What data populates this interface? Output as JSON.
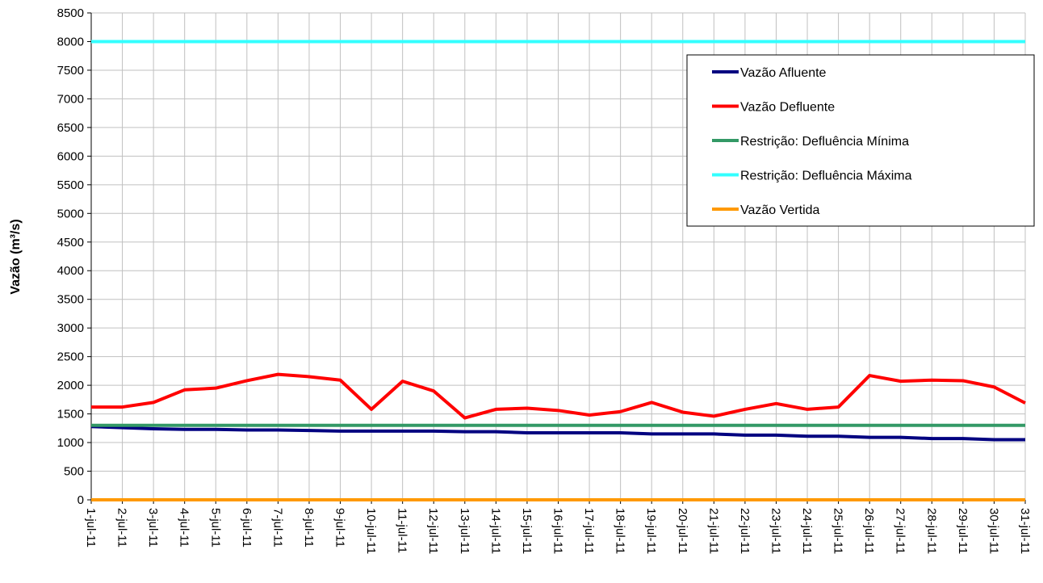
{
  "chart_data": {
    "type": "line",
    "y_label": "Vazão (m³/s)",
    "categories": [
      "1-jul-11",
      "2-jul-11",
      "3-jul-11",
      "4-jul-11",
      "5-jul-11",
      "6-jul-11",
      "7-jul-11",
      "8-jul-11",
      "9-jul-11",
      "10-jul-11",
      "11-jul-11",
      "12-jul-11",
      "13-jul-11",
      "14-jul-11",
      "15-jul-11",
      "16-jul-11",
      "17-jul-11",
      "18-jul-11",
      "19-jul-11",
      "20-jul-11",
      "21-jul-11",
      "22-jul-11",
      "23-jul-11",
      "24-jul-11",
      "25-jul-11",
      "26-jul-11",
      "27-jul-11",
      "28-jul-11",
      "29-jul-11",
      "30-jul-11",
      "31-jul-11"
    ],
    "series": [
      {
        "name": "Vazão Afluente",
        "color": "#000080",
        "values": [
          1280,
          1260,
          1240,
          1230,
          1230,
          1220,
          1220,
          1210,
          1200,
          1200,
          1200,
          1200,
          1190,
          1190,
          1170,
          1170,
          1170,
          1170,
          1150,
          1150,
          1150,
          1130,
          1130,
          1110,
          1110,
          1090,
          1090,
          1070,
          1070,
          1050,
          1050
        ]
      },
      {
        "name": "Vazão Defluente",
        "color": "#ff0000",
        "values": [
          1620,
          1620,
          1700,
          1920,
          1950,
          2080,
          2190,
          2150,
          2090,
          1580,
          2070,
          1900,
          1430,
          1580,
          1600,
          1560,
          1480,
          1540,
          1700,
          1530,
          1460,
          1580,
          1680,
          1580,
          1620,
          2170,
          2070,
          2090,
          2080,
          1970,
          1690
        ]
      },
      {
        "name": "Restrição: Defluência Mínima",
        "color": "#339966",
        "values": [
          1300,
          1300,
          1300,
          1300,
          1300,
          1300,
          1300,
          1300,
          1300,
          1300,
          1300,
          1300,
          1300,
          1300,
          1300,
          1300,
          1300,
          1300,
          1300,
          1300,
          1300,
          1300,
          1300,
          1300,
          1300,
          1300,
          1300,
          1300,
          1300,
          1300,
          1300
        ]
      },
      {
        "name": "Restrição: Defluência Máxima",
        "color": "#33ffff",
        "values": [
          8000,
          8000,
          8000,
          8000,
          8000,
          8000,
          8000,
          8000,
          8000,
          8000,
          8000,
          8000,
          8000,
          8000,
          8000,
          8000,
          8000,
          8000,
          8000,
          8000,
          8000,
          8000,
          8000,
          8000,
          8000,
          8000,
          8000,
          8000,
          8000,
          8000,
          8000
        ]
      },
      {
        "name": "Vazão Vertida",
        "color": "#ff9900",
        "values": [
          0,
          0,
          0,
          0,
          0,
          0,
          0,
          0,
          0,
          0,
          0,
          0,
          0,
          0,
          0,
          0,
          0,
          0,
          0,
          0,
          0,
          0,
          0,
          0,
          0,
          0,
          0,
          0,
          0,
          0,
          0
        ]
      }
    ],
    "ylim": [
      0,
      8500
    ],
    "yticks": [
      0,
      500,
      1000,
      1500,
      2000,
      2500,
      3000,
      3500,
      4000,
      4500,
      5000,
      5500,
      6000,
      6500,
      7000,
      7500,
      8000,
      8500
    ],
    "grid": true,
    "legend": "top-right"
  }
}
